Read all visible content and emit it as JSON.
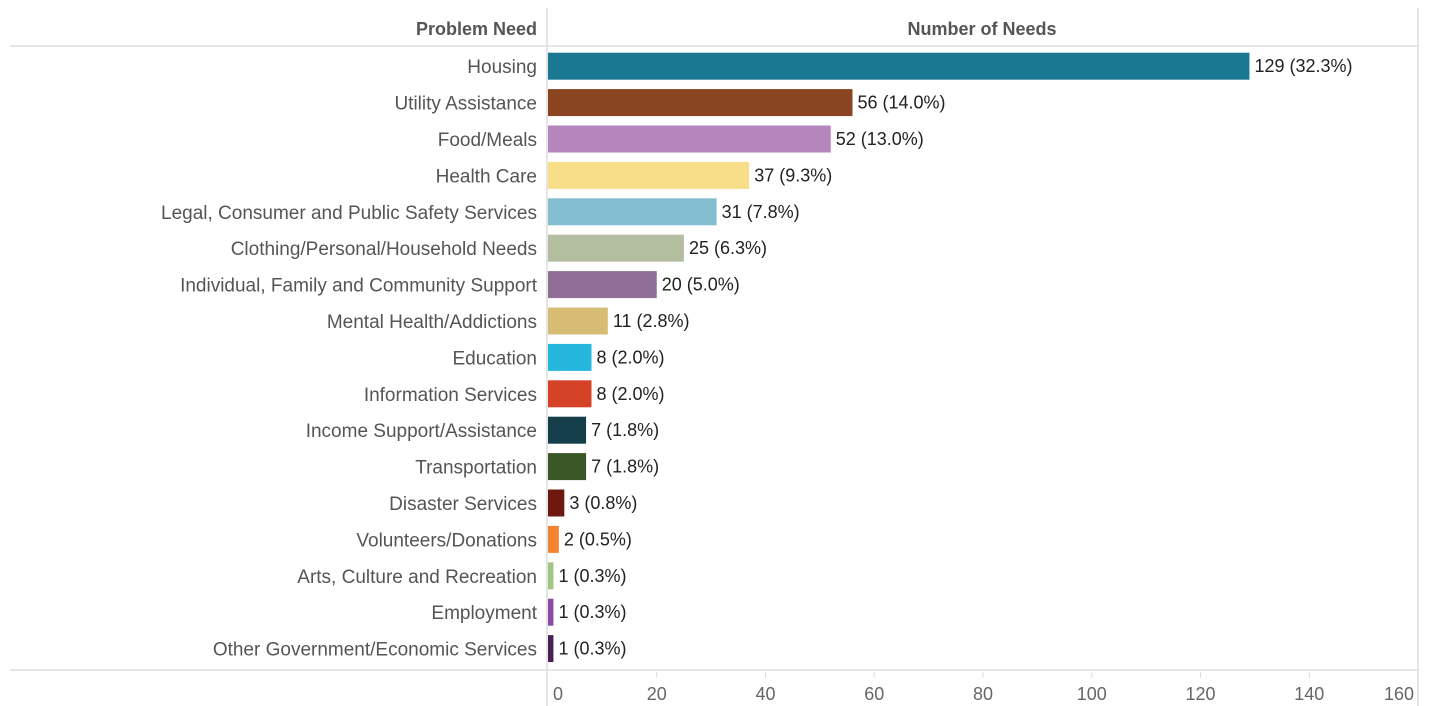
{
  "chart_data": {
    "type": "bar",
    "orientation": "horizontal",
    "column_headers": {
      "category": "Problem Need",
      "value": "Number of Needs"
    },
    "categories": [
      "Housing",
      "Utility Assistance",
      "Food/Meals",
      "Health Care",
      "Legal, Consumer and Public Safety Services",
      "Clothing/Personal/Household Needs",
      "Individual, Family and Community Support",
      "Mental Health/Addictions",
      "Education",
      "Information Services",
      "Income Support/Assistance",
      "Transportation",
      "Disaster Services",
      "Volunteers/Donations",
      "Arts, Culture and Recreation",
      "Employment",
      "Other Government/Economic Services"
    ],
    "values": [
      129,
      56,
      52,
      37,
      31,
      25,
      20,
      11,
      8,
      8,
      7,
      7,
      3,
      2,
      1,
      1,
      1
    ],
    "data_labels": [
      "129 (32.3%)",
      "56 (14.0%)",
      "52 (13.0%)",
      "37 (9.3%)",
      "31 (7.8%)",
      "25 (6.3%)",
      "20 (5.0%)",
      "11 (2.8%)",
      "8 (2.0%)",
      "8 (2.0%)",
      "7 (1.8%)",
      "7 (1.8%)",
      "3 (0.8%)",
      "2 (0.5%)",
      "1 (0.3%)",
      "1 (0.3%)",
      "1 (0.3%)"
    ],
    "colors": [
      "#1b7892",
      "#8b4420",
      "#b585bd",
      "#f9de8a",
      "#84bfd1",
      "#b3bea1",
      "#8f6f95",
      "#d7bd74",
      "#25b6dd",
      "#d44228",
      "#153e4b",
      "#3b5727",
      "#6e1810",
      "#f58431",
      "#a2c582",
      "#8c4aa8",
      "#4a2153"
    ],
    "xlim": [
      0,
      160
    ],
    "xticks": [
      0,
      20,
      40,
      60,
      80,
      100,
      120,
      140,
      160
    ],
    "grid": false,
    "legend": "none"
  }
}
